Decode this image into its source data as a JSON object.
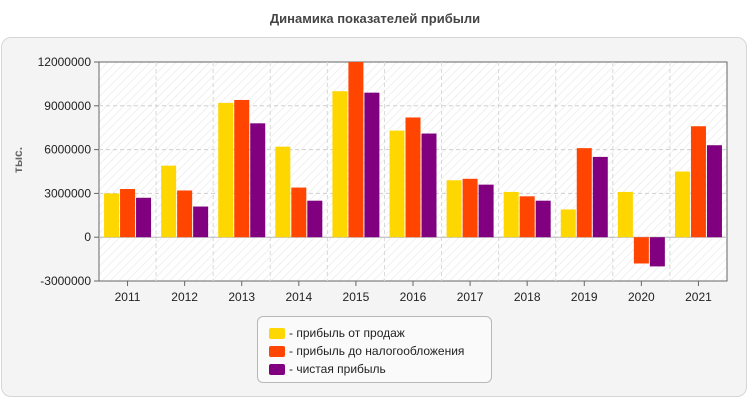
{
  "title": "Динамика показателей прибыли",
  "chart_data": {
    "type": "bar",
    "title": "Динамика показателей прибыли",
    "xlabel": "",
    "ylabel": "тыс.",
    "ylim": [
      -3000000,
      12000000
    ],
    "yticks": [
      "12000000",
      "9000000",
      "6000000",
      "3000000",
      "0",
      "-3000000"
    ],
    "grid": true,
    "legend_position": "bottom",
    "categories": [
      "2011",
      "2012",
      "2013",
      "2014",
      "2015",
      "2016",
      "2017",
      "2018",
      "2019",
      "2020",
      "2021"
    ],
    "series": [
      {
        "name": "- прибыль от продаж",
        "color": "#ffd700",
        "values": [
          3000000,
          4900000,
          9200000,
          6200000,
          10000000,
          7300000,
          3900000,
          3100000,
          1900000,
          3100000,
          4500000
        ]
      },
      {
        "name": "- прибыль до налогообложения",
        "color": "#ff4500",
        "values": [
          3300000,
          3200000,
          9400000,
          3400000,
          12000000,
          8200000,
          4000000,
          2800000,
          6100000,
          -1800000,
          7600000
        ]
      },
      {
        "name": "- чистая прибыль",
        "color": "#800080",
        "values": [
          2700000,
          2100000,
          7800000,
          2500000,
          9900000,
          7100000,
          3600000,
          2500000,
          5500000,
          -2000000,
          6300000
        ]
      }
    ]
  }
}
